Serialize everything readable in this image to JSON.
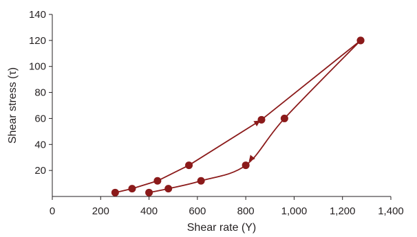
{
  "chart_data": {
    "type": "scatter",
    "title": "",
    "xlabel": "Shear rate (Y)",
    "ylabel": "Shear stress (τ)",
    "xlim": [
      0,
      1400
    ],
    "ylim": [
      0,
      140
    ],
    "x_ticks": [
      "0",
      "200",
      "400",
      "600",
      "800",
      "1,000",
      "1,200",
      "1,400"
    ],
    "y_ticks": [
      "20",
      "40",
      "60",
      "80",
      "100",
      "120",
      "140"
    ],
    "grid": false,
    "legend": "none",
    "color": "#8b1a1a",
    "series": [
      {
        "points": [
          {
            "x": 260,
            "y": 3
          },
          {
            "x": 330,
            "y": 6
          },
          {
            "x": 435,
            "y": 12
          },
          {
            "x": 565,
            "y": 24
          },
          {
            "x": 865,
            "y": 59
          },
          {
            "x": 1275,
            "y": 120
          }
        ],
        "direction": "increasing"
      },
      {
        "points": [
          {
            "x": 1275,
            "y": 120
          },
          {
            "x": 960,
            "y": 60
          },
          {
            "x": 800,
            "y": 24
          },
          {
            "x": 615,
            "y": 12
          },
          {
            "x": 480,
            "y": 6
          },
          {
            "x": 400,
            "y": 3
          }
        ],
        "direction": "decreasing"
      }
    ]
  }
}
